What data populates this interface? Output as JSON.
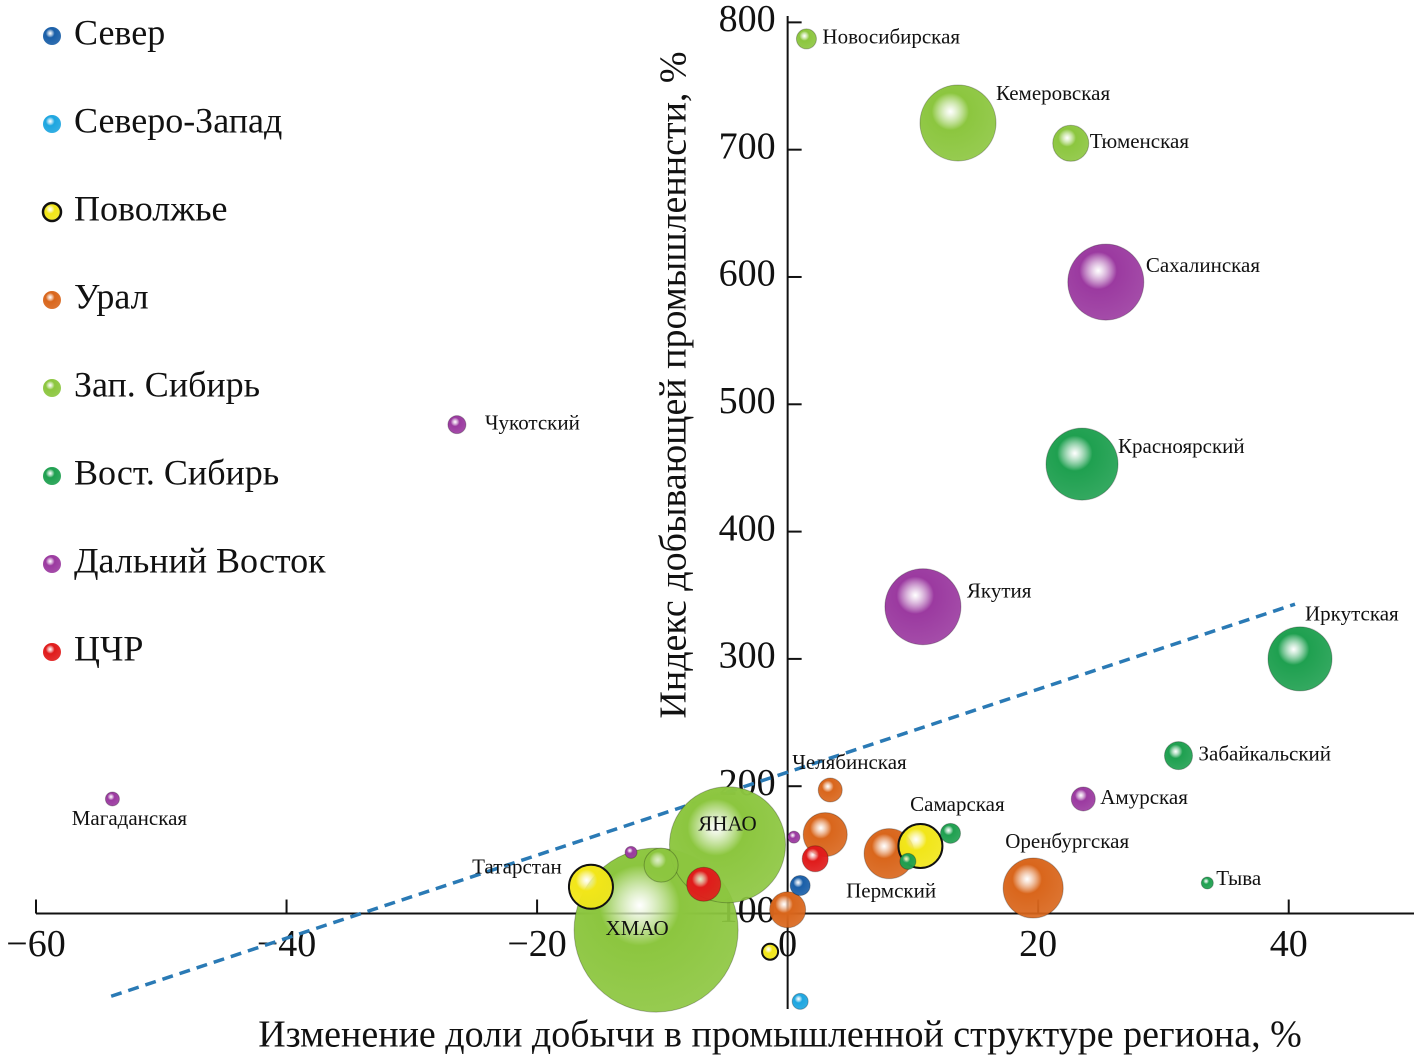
{
  "chart_data": {
    "type": "bubble",
    "xlabel": "Изменение доли добычи в промышленной структуре региона, %",
    "ylabel": "Индекс добывающей промышленнсти, %",
    "xlim": [
      -60,
      50
    ],
    "ylim": [
      25,
      805
    ],
    "xticks": [
      {
        "value": -60,
        "label": "−60"
      },
      {
        "value": -40,
        "label": "−40"
      },
      {
        "value": -20,
        "label": "−20"
      },
      0,
      20,
      40
    ],
    "yticks": [
      100,
      200,
      300,
      400,
      500,
      600,
      700,
      800
    ],
    "x_axis_position": 100,
    "trendline": {
      "x": [
        -54,
        40.5
      ],
      "y": [
        35,
        343
      ],
      "color": "#2a7ab5"
    },
    "series": [
      {
        "name": "Север",
        "color": "#1a5fa8",
        "x": [
          1.0
        ],
        "values": [
          122
        ],
        "sizes": [
          10
        ],
        "labels": [
          null
        ]
      },
      {
        "name": "Северо-Запад",
        "color": "#1ea6e0",
        "x": [
          1.0
        ],
        "values": [
          31
        ],
        "sizes": [
          8
        ],
        "labels": [
          null
        ]
      },
      {
        "name": "Поволжье",
        "color": "#f2e619",
        "x": [
          -15.7,
          10.6,
          -1.4
        ],
        "values": [
          121,
          153,
          70
        ],
        "sizes": [
          22,
          22,
          8
        ],
        "labels": [
          "Татарстан",
          "Самарская",
          null
        ]
      },
      {
        "name": "Урал",
        "color": "#d9661c",
        "x": [
          3.4,
          3.0,
          8.1,
          19.6,
          0
        ],
        "values": [
          197,
          162,
          147,
          120,
          103
        ],
        "sizes": [
          12,
          22,
          25,
          30,
          18
        ],
        "labels": [
          "Челябинская",
          null,
          "Пермский",
          "Оренбургская",
          null
        ]
      },
      {
        "name": "Зап. Сибирь",
        "color": "#8cc63f",
        "x": [
          1.5,
          13.6,
          22.6,
          -4.8,
          -10.5,
          -10.1
        ],
        "values": [
          787,
          721,
          705,
          154,
          87,
          138
        ],
        "sizes": [
          10,
          38,
          18,
          58,
          82,
          17
        ],
        "labels": [
          "Новосибирская",
          "Кемеровская",
          "Тюменская",
          "ЯНАО",
          "ХМАО",
          null
        ]
      },
      {
        "name": "Вост. Сибирь",
        "color": "#1fa050",
        "x": [
          23.5,
          40.9,
          31.2,
          33.5,
          13.0,
          9.6
        ],
        "values": [
          453,
          300,
          224,
          124,
          163,
          141
        ],
        "sizes": [
          36,
          32,
          14,
          6,
          10,
          8
        ],
        "labels": [
          "Красноярский",
          "Иркутская",
          "Забайкальский",
          "Тыва",
          null,
          null
        ]
      },
      {
        "name": "Дальний Восток",
        "color": "#9b3aa0",
        "x": [
          25.4,
          10.8,
          -26.4,
          -53.9,
          23.6,
          -12.5,
          0.5
        ],
        "values": [
          596,
          341,
          484,
          190,
          190,
          148,
          160
        ],
        "sizes": [
          38,
          38,
          9,
          7,
          12,
          6,
          6
        ],
        "labels": [
          "Сахалинская",
          "Якутия",
          "Чукотский",
          "Магаданская",
          "Амурская",
          null,
          null
        ]
      },
      {
        "name": "ЦЧР",
        "color": "#e01b1b",
        "x": [
          -6.7,
          2.2
        ],
        "values": [
          123,
          143
        ],
        "sizes": [
          17,
          13
        ],
        "labels": [
          null,
          null
        ]
      }
    ]
  }
}
